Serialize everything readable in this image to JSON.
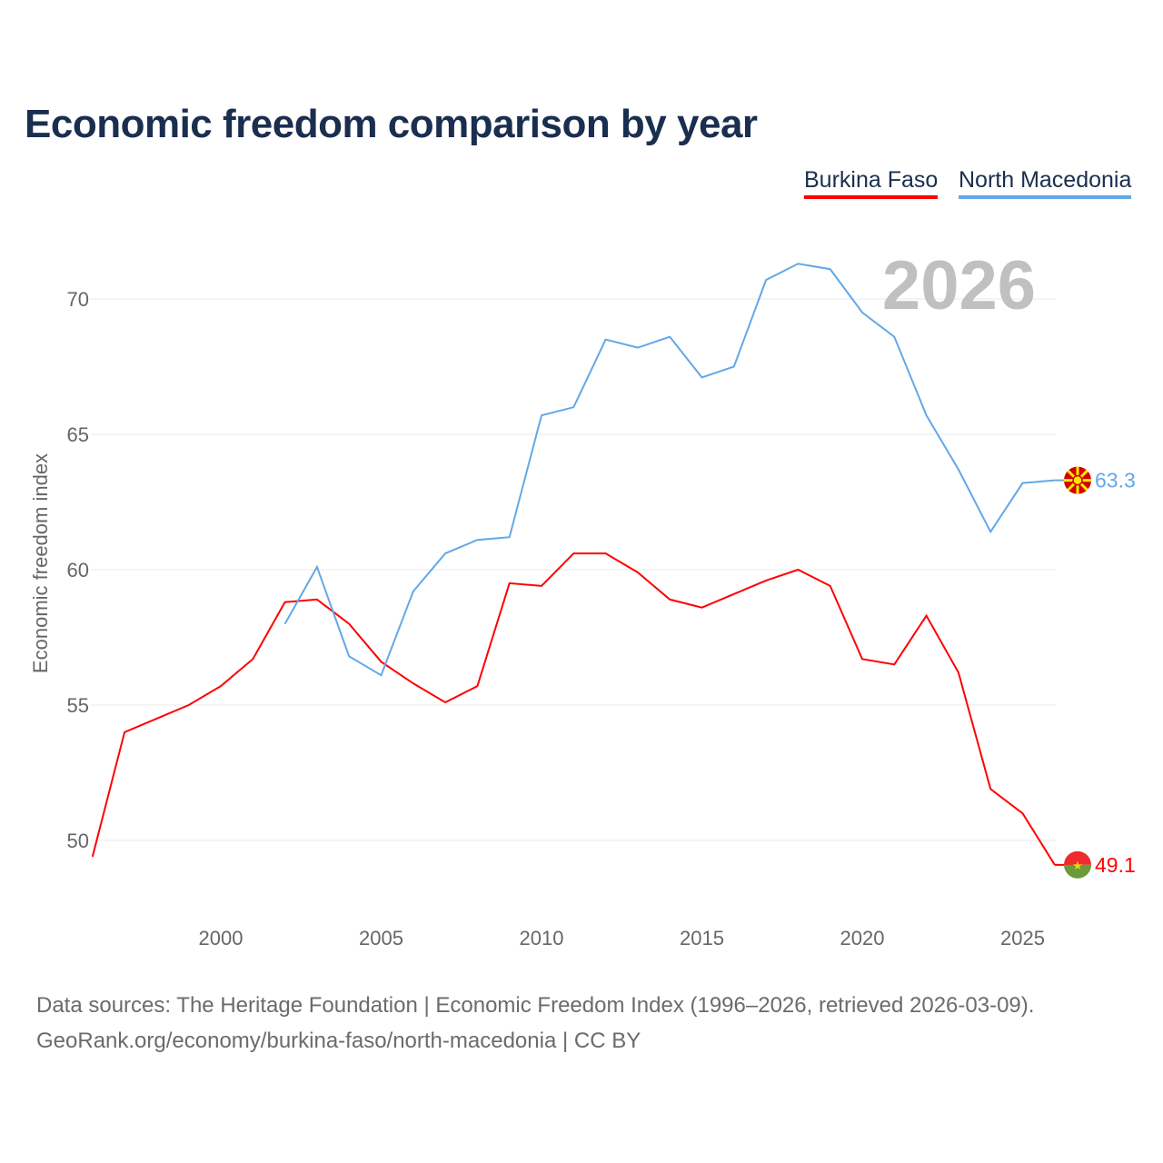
{
  "chart_data": {
    "type": "line",
    "title": "Economic freedom comparison by year",
    "xlabel": "",
    "ylabel": "Economic freedom index",
    "xlim": [
      1996,
      2026
    ],
    "yticks": [
      50,
      55,
      60,
      65,
      70
    ],
    "xticks": [
      2000,
      2005,
      2010,
      2015,
      2020,
      2025
    ],
    "grid": true,
    "legend_position": "top-right",
    "year_watermark": "2026",
    "series": [
      {
        "name": "Burkina Faso",
        "color": "#ff0000",
        "end_label": "49.1",
        "x": [
          1996,
          1997,
          1998,
          1999,
          2000,
          2001,
          2002,
          2003,
          2004,
          2005,
          2006,
          2007,
          2008,
          2009,
          2010,
          2011,
          2012,
          2013,
          2014,
          2015,
          2016,
          2017,
          2018,
          2019,
          2020,
          2021,
          2022,
          2023,
          2024,
          2025,
          2026
        ],
        "values": [
          49.4,
          54.0,
          54.5,
          55.0,
          55.7,
          56.7,
          58.8,
          58.9,
          58.0,
          56.6,
          55.8,
          55.1,
          55.7,
          59.5,
          59.4,
          60.6,
          60.6,
          59.9,
          58.9,
          58.6,
          59.1,
          59.6,
          60.0,
          59.4,
          56.7,
          56.5,
          58.3,
          56.2,
          51.9,
          51.0,
          49.1
        ]
      },
      {
        "name": "North Macedonia",
        "color": "#62a8e8",
        "end_label": "63.3",
        "x": [
          2002,
          2003,
          2004,
          2005,
          2006,
          2007,
          2008,
          2009,
          2010,
          2011,
          2012,
          2013,
          2014,
          2015,
          2016,
          2017,
          2018,
          2019,
          2020,
          2021,
          2022,
          2023,
          2024,
          2025,
          2026
        ],
        "values": [
          58.0,
          60.1,
          56.8,
          56.1,
          59.2,
          60.6,
          61.1,
          61.2,
          65.7,
          66.0,
          68.5,
          68.2,
          68.6,
          67.1,
          67.5,
          70.7,
          71.3,
          71.1,
          69.5,
          68.6,
          65.7,
          63.7,
          61.4,
          63.2,
          63.3
        ]
      }
    ]
  },
  "footer": {
    "line1": "Data sources: The Heritage Foundation | Economic Freedom Index (1996–2026, retrieved 2026-03-09).",
    "line2": "GeoRank.org/economy/burkina-faso/north-macedonia | CC BY"
  }
}
